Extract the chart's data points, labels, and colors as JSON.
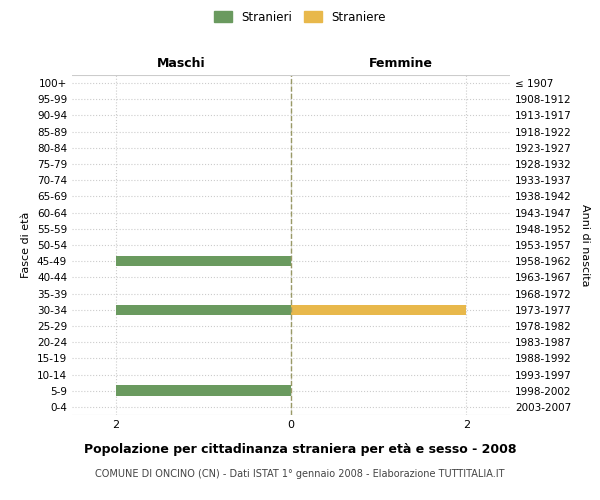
{
  "age_groups": [
    "100+",
    "95-99",
    "90-94",
    "85-89",
    "80-84",
    "75-79",
    "70-74",
    "65-69",
    "60-64",
    "55-59",
    "50-54",
    "45-49",
    "40-44",
    "35-39",
    "30-34",
    "25-29",
    "20-24",
    "15-19",
    "10-14",
    "5-9",
    "0-4"
  ],
  "birth_years": [
    "≤ 1907",
    "1908-1912",
    "1913-1917",
    "1918-1922",
    "1923-1927",
    "1928-1932",
    "1933-1937",
    "1938-1942",
    "1943-1947",
    "1948-1952",
    "1953-1957",
    "1958-1962",
    "1963-1967",
    "1968-1972",
    "1973-1977",
    "1978-1982",
    "1983-1987",
    "1988-1992",
    "1993-1997",
    "1998-2002",
    "2003-2007"
  ],
  "maschi_stranieri": [
    0,
    0,
    0,
    0,
    0,
    0,
    0,
    0,
    0,
    0,
    0,
    2,
    0,
    0,
    2,
    0,
    0,
    0,
    0,
    2,
    0
  ],
  "femmine_straniere": [
    0,
    0,
    0,
    0,
    0,
    0,
    0,
    0,
    0,
    0,
    0,
    0,
    0,
    0,
    2,
    0,
    0,
    0,
    0,
    0,
    0
  ],
  "color_maschi": "#6a9a5f",
  "color_femmine": "#e8b84b",
  "xlim": 2.5,
  "title": "Popolazione per cittadinanza straniera per età e sesso - 2008",
  "subtitle": "COMUNE DI ONCINO (CN) - Dati ISTAT 1° gennaio 2008 - Elaborazione TUTTITALIA.IT",
  "ylabel_left": "Fasce di età",
  "ylabel_right": "Anni di nascita",
  "xlabel_left": "Maschi",
  "xlabel_right": "Femmine",
  "legend_maschi": "Stranieri",
  "legend_femmine": "Straniere",
  "bg_color": "#ffffff",
  "grid_color": "#cccccc",
  "dashed_line_color": "#999966"
}
